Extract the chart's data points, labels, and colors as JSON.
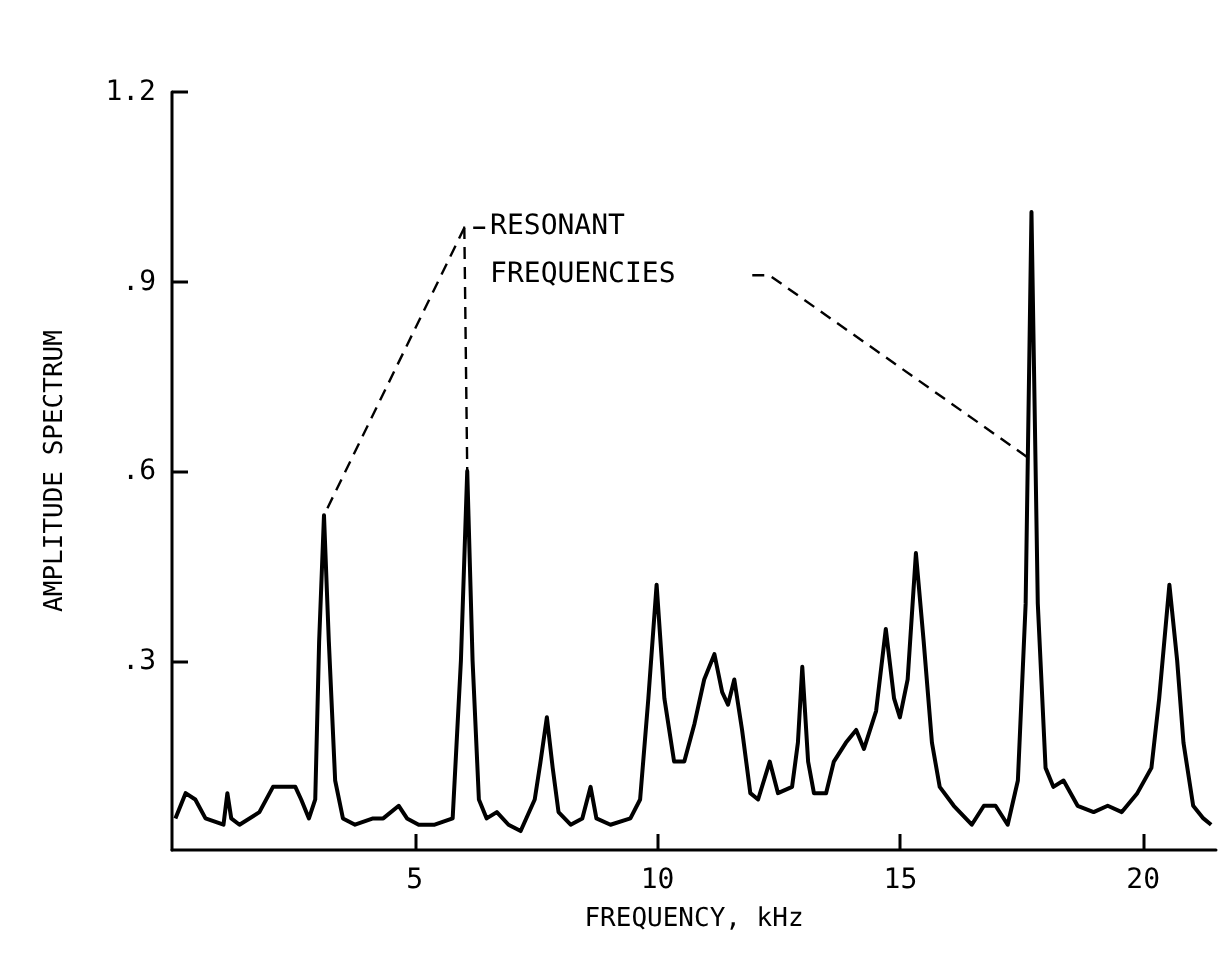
{
  "chart_data": {
    "type": "line",
    "xlabel": "FREQUENCY, kHz",
    "ylabel": "AMPLITUDE SPECTRUM",
    "annotations": [
      {
        "text": "RESONANT FREQUENCIES",
        "x": 6.08,
        "y": 0.6
      }
    ],
    "xlim": [
      0,
      21.5
    ],
    "xticks": [
      5,
      10,
      15,
      20
    ],
    "ylim": [
      0,
      1.2
    ],
    "yticks": [
      {
        "value": 0.3,
        "label": ".3"
      },
      {
        "value": 0.6,
        "label": ".6"
      },
      {
        "value": 0.9,
        "label": ".9"
      },
      1.2
    ],
    "grid": false,
    "marker": "none",
    "line_style": "solid",
    "series": [
      {
        "color": "#000000",
        "x": [
          0.07,
          0.28,
          0.48,
          0.69,
          1.06,
          1.14,
          1.22,
          1.39,
          1.8,
          2.08,
          2.33,
          2.54,
          2.66,
          2.82,
          2.95,
          3.03,
          3.13,
          3.23,
          3.36,
          3.52,
          3.77,
          4.14,
          4.35,
          4.67,
          4.84,
          5.08,
          5.41,
          5.78,
          5.95,
          6.08,
          6.19,
          6.32,
          6.48,
          6.69,
          6.93,
          7.18,
          7.47,
          7.59,
          7.72,
          7.84,
          7.96,
          8.21,
          8.45,
          8.62,
          8.74,
          9.03,
          9.44,
          9.64,
          9.81,
          9.98,
          10.14,
          10.34,
          10.55,
          10.76,
          10.96,
          11.17,
          11.33,
          11.45,
          11.58,
          11.74,
          11.91,
          12.07,
          12.31,
          12.48,
          12.77,
          12.89,
          12.98,
          13.1,
          13.22,
          13.47,
          13.63,
          13.88,
          14.09,
          14.25,
          14.5,
          14.7,
          14.87,
          14.99,
          15.15,
          15.32,
          15.48,
          15.65,
          15.81,
          16.1,
          16.47,
          16.72,
          16.96,
          17.21,
          17.42,
          17.58,
          17.7,
          17.83,
          17.99,
          18.15,
          18.36,
          18.65,
          18.98,
          19.27,
          19.56,
          19.88,
          20.17,
          20.33,
          20.54,
          20.7,
          20.83,
          21.03,
          21.24,
          21.4
        ],
        "values": [
          0.05,
          0.09,
          0.08,
          0.05,
          0.04,
          0.09,
          0.05,
          0.04,
          0.06,
          0.1,
          0.1,
          0.1,
          0.08,
          0.05,
          0.08,
          0.33,
          0.53,
          0.33,
          0.11,
          0.05,
          0.04,
          0.05,
          0.05,
          0.07,
          0.05,
          0.04,
          0.04,
          0.05,
          0.3,
          0.6,
          0.3,
          0.08,
          0.05,
          0.06,
          0.04,
          0.03,
          0.08,
          0.14,
          0.21,
          0.13,
          0.06,
          0.04,
          0.05,
          0.1,
          0.05,
          0.04,
          0.05,
          0.08,
          0.24,
          0.42,
          0.24,
          0.14,
          0.14,
          0.2,
          0.27,
          0.31,
          0.25,
          0.23,
          0.27,
          0.19,
          0.09,
          0.08,
          0.14,
          0.09,
          0.1,
          0.17,
          0.29,
          0.14,
          0.09,
          0.09,
          0.14,
          0.17,
          0.19,
          0.16,
          0.22,
          0.35,
          0.24,
          0.21,
          0.27,
          0.47,
          0.33,
          0.17,
          0.1,
          0.07,
          0.04,
          0.07,
          0.07,
          0.04,
          0.11,
          0.39,
          1.01,
          0.39,
          0.13,
          0.1,
          0.11,
          0.07,
          0.06,
          0.07,
          0.06,
          0.09,
          0.13,
          0.24,
          0.42,
          0.3,
          0.17,
          0.07,
          0.05,
          0.04
        ]
      }
    ]
  }
}
